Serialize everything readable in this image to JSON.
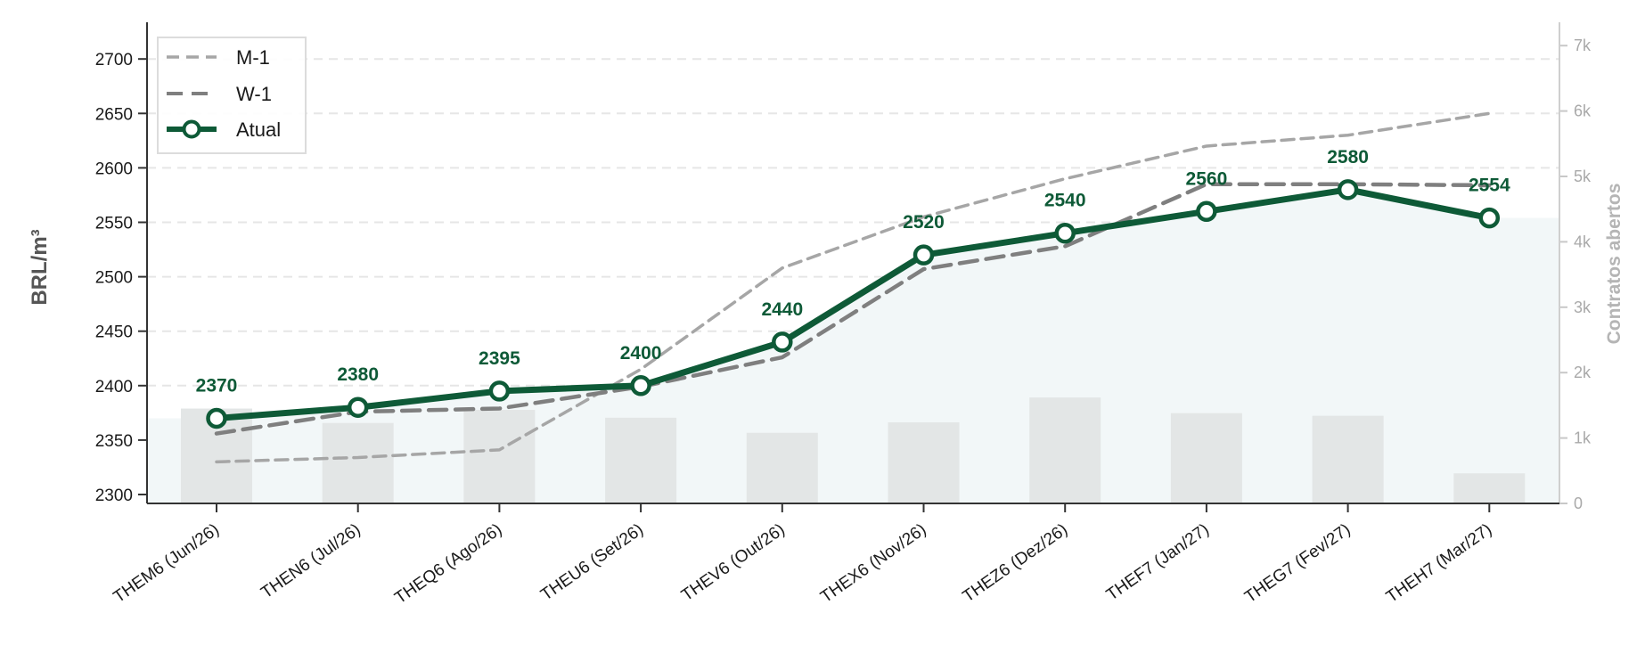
{
  "chart_data": {
    "type": "line",
    "categories": [
      "THEM6 (Jun/26)",
      "THEN6 (Jul/26)",
      "THEQ6 (Ago/26)",
      "THEU6 (Set/26)",
      "THEV6 (Out/26)",
      "THEX6 (Nov/26)",
      "THEZ6 (Dez/26)",
      "THEF7 (Jan/27)",
      "THEG7 (Fev/27)",
      "THEH7 (Mar/27)"
    ],
    "series": [
      {
        "name": "M-1",
        "style": "dashed-light",
        "color": "#a6a6a6",
        "values": [
          2330,
          2334,
          2341,
          2415,
          2508,
          2555,
          2590,
          2620,
          2630,
          2650
        ]
      },
      {
        "name": "W-1",
        "style": "dashed",
        "color": "#7f7f7f",
        "values": [
          2356,
          2376,
          2379,
          2399,
          2426,
          2507,
          2528,
          2585,
          2585,
          2584
        ]
      },
      {
        "name": "Atual",
        "style": "solid-markers",
        "color": "#0e5a37",
        "values": [
          2370,
          2380,
          2395,
          2400,
          2440,
          2520,
          2540,
          2560,
          2580,
          2554
        ],
        "data_labels": [
          "2370",
          "2380",
          "2395",
          "2400",
          "2440",
          "2520",
          "2540",
          "2560",
          "2580",
          "2554"
        ]
      }
    ],
    "bars": {
      "axis": "right",
      "color": "#e3e6e6",
      "values": [
        1450,
        1230,
        1430,
        1310,
        1080,
        1240,
        1620,
        1380,
        1340,
        460
      ]
    },
    "area": {
      "color": "#f2f7f8"
    },
    "ylabel": "BRL/m³",
    "ylim": [
      2292,
      2735
    ],
    "yticks": [
      "2300",
      "2350",
      "2400",
      "2450",
      "2500",
      "2550",
      "2600",
      "2650",
      "2700"
    ],
    "y2label": "Contratos abertos",
    "y2lim": [
      0,
      7360
    ],
    "y2ticks": [
      "0",
      "1k",
      "2k",
      "3k",
      "4k",
      "5k",
      "6k",
      "7k"
    ],
    "grid": "horizontal-dashed",
    "legend": "top-left"
  }
}
